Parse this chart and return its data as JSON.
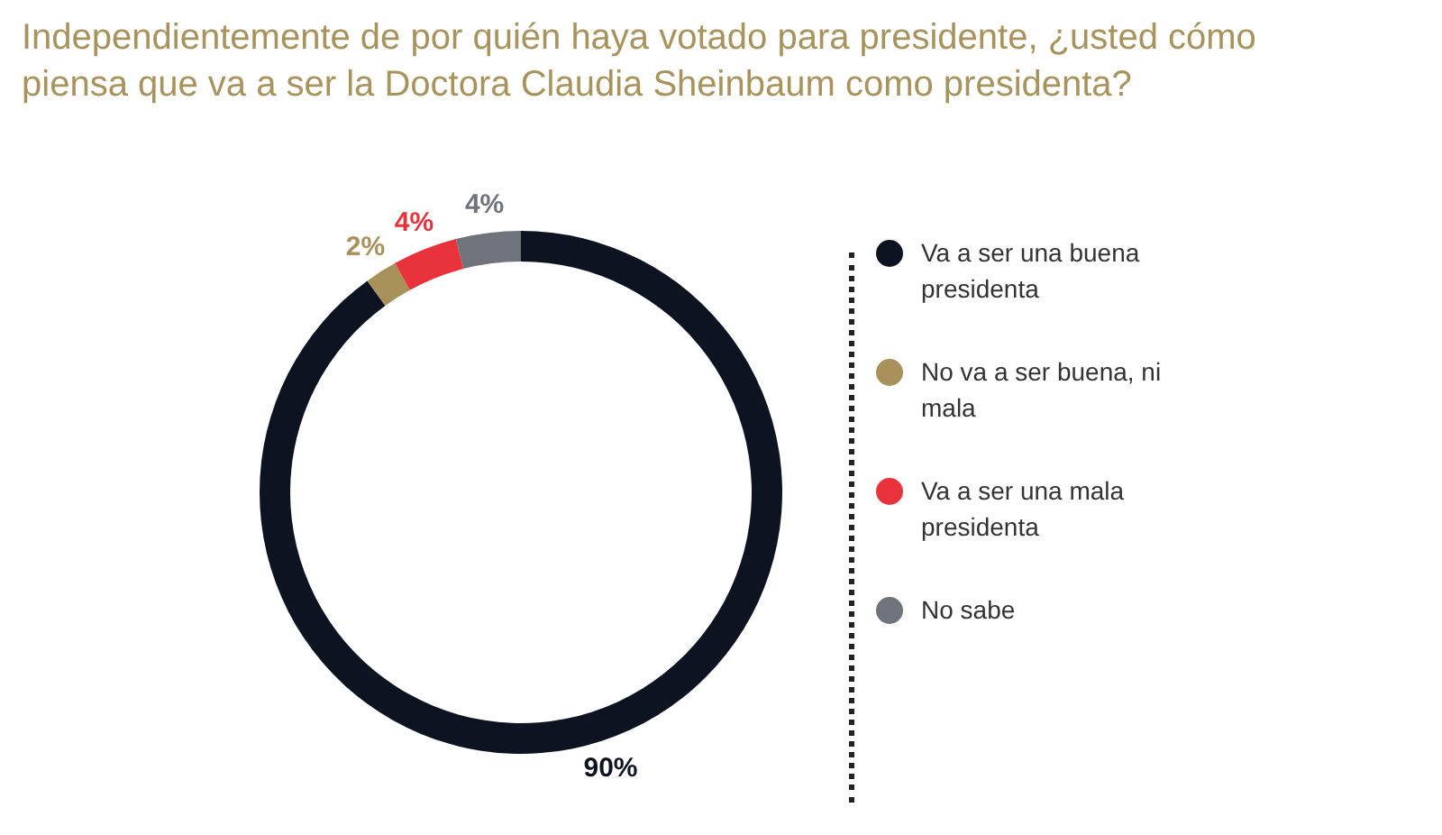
{
  "chart_data": {
    "type": "donut",
    "title": "Independientemente de por quién haya votado para presidente, ¿usted cómo piensa que va a ser la Doctora Claudia Sheinbaum como presidenta?",
    "categories": [
      "Va a ser una buena presidenta",
      "No va a ser buena, ni mala",
      "Va a ser una mala presidenta",
      "No sabe"
    ],
    "values": [
      90,
      2,
      4,
      4
    ],
    "colors": [
      "#0d1321",
      "#a8915a",
      "#e8323c",
      "#6e737c"
    ],
    "value_labels": [
      "90%",
      "2%",
      "4%",
      "4%"
    ],
    "legend": "right"
  }
}
